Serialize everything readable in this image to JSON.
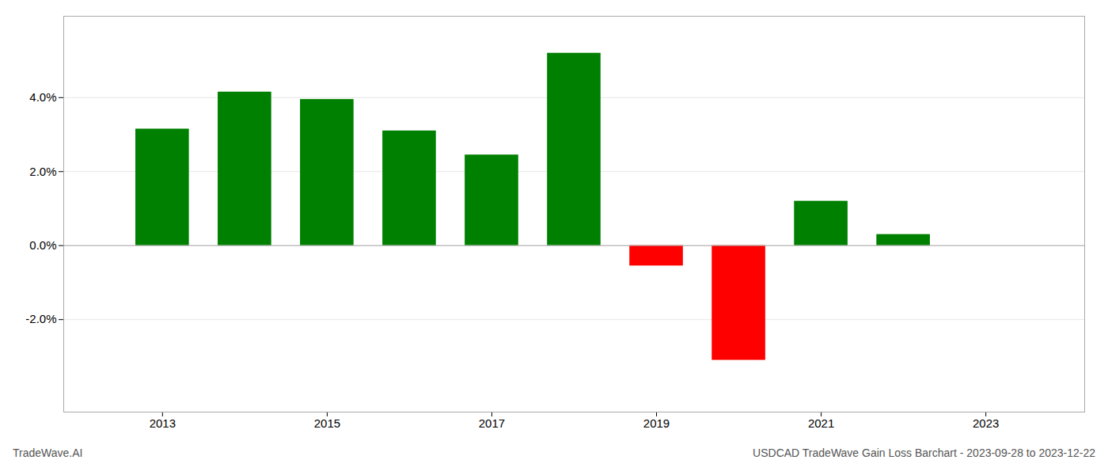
{
  "chart_data": {
    "type": "bar",
    "title": "USDCAD TradeWave Gain Loss Barchart - 2023-09-28 to 2023-12-22",
    "annotations": [
      "TradeWave.AI"
    ],
    "x": [
      2013,
      2014,
      2015,
      2016,
      2017,
      2018,
      2019,
      2020,
      2021,
      2022
    ],
    "values": [
      0.0315,
      0.0415,
      0.0395,
      0.031,
      0.0245,
      0.052,
      -0.0055,
      -0.031,
      0.012,
      0.003
    ],
    "colors": [
      "#008000",
      "#008000",
      "#008000",
      "#008000",
      "#008000",
      "#008000",
      "#ff0000",
      "#ff0000",
      "#008000",
      "#008000"
    ],
    "xlim": [
      2011.8,
      2024.2
    ],
    "xticks": [
      2013,
      2015,
      2017,
      2019,
      2021,
      2023
    ],
    "ylim": [
      -0.045,
      0.062
    ],
    "yticks": [
      {
        "value": -0.02,
        "label": "-2.0%"
      },
      {
        "value": 0.0,
        "label": "0.0%"
      },
      {
        "value": 0.02,
        "label": "2.0%"
      },
      {
        "value": 0.04,
        "label": "4.0%"
      }
    ],
    "grid": true
  }
}
